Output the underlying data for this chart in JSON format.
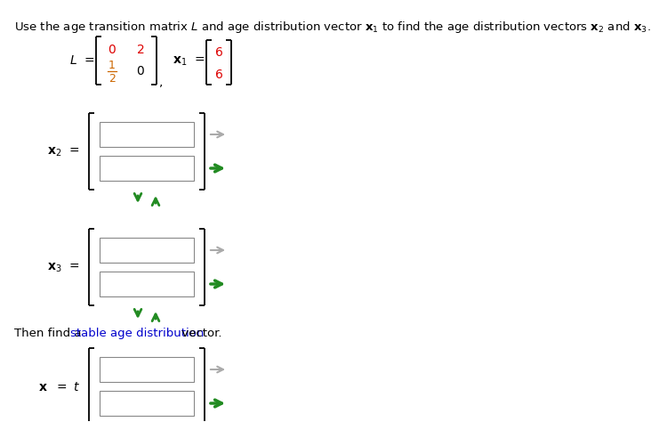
{
  "bg_color": "#ffffff",
  "text_color": "#000000",
  "red_color": "#dd0000",
  "green_color": "#228B22",
  "gray_color": "#aaaaaa",
  "orange_color": "#cc6600",
  "blue_color": "#0000cc",
  "font_size_main": 9.5,
  "font_size_matrix": 10,
  "font_size_label": 10,
  "then_text_parts": [
    "Then find a ",
    "stable age distribution",
    " vector."
  ],
  "then_colors": [
    "#000000",
    "#0066cc",
    "#000000"
  ],
  "matrix_L_00": "0",
  "matrix_L_01": "2",
  "matrix_L_10": "1",
  "matrix_L_10b": "2",
  "matrix_L_11": "0",
  "vec_x1_0": "6",
  "vec_x1_1": "6",
  "title_line": "Use the age transition matrix $\\mathit{L}$ and age distribution vector $\\mathbf{x}_1$ to find the age distribution vectors $\\mathbf{x}_2$ and $\\mathbf{x}_3$."
}
